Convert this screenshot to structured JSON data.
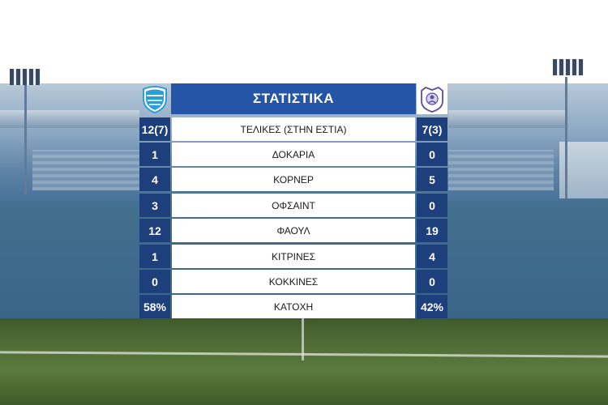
{
  "panel": {
    "title": "ΣΤΑΤΙΣΤΙΚΑ",
    "home_crest": "home-team-crest",
    "away_crest": "away-team-crest",
    "colors": {
      "title_bg": "#2455a6",
      "number_bg": "#1d3f7c",
      "label_bg": "#ffffff"
    }
  },
  "stats": [
    {
      "label": "ΤΕΛΙΚΕΣ (ΣΤΗΝ ΕΣΤΙΑ)",
      "home": "12(7)",
      "away": "7(3)"
    },
    {
      "label": "ΔΟΚΑΡΙΑ",
      "home": "1",
      "away": "0"
    },
    {
      "label": "ΚΟΡΝΕΡ",
      "home": "4",
      "away": "5"
    },
    {
      "label": "ΟΦΣΑΙΝΤ",
      "home": "3",
      "away": "0"
    },
    {
      "label": "ΦΑΟΥΛ",
      "home": "12",
      "away": "19"
    },
    {
      "label": "ΚΙΤΡΙΝΕΣ",
      "home": "1",
      "away": "4"
    },
    {
      "label": "ΚΟΚΚΙΝΕΣ",
      "home": "0",
      "away": "0"
    },
    {
      "label": "ΚΑΤΟΧΗ",
      "home": "58%",
      "away": "42%"
    }
  ]
}
